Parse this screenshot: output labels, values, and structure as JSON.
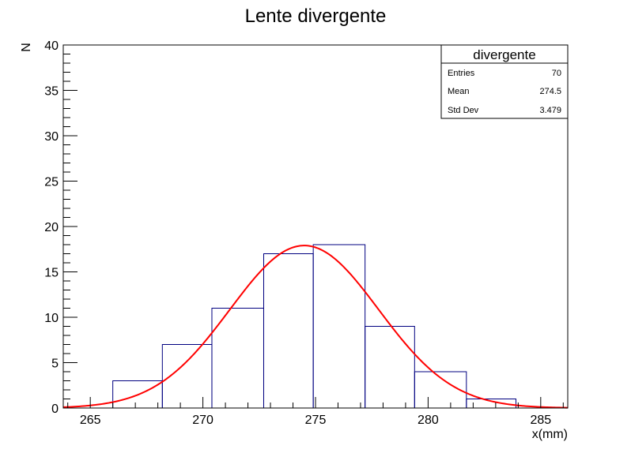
{
  "chart_data": {
    "type": "histogram",
    "title": "Lente divergente",
    "xlabel": "x(mm)",
    "ylabel": "N",
    "xlim": [
      263.8,
      286.2
    ],
    "ylim": [
      0,
      40
    ],
    "x_ticks": [
      265,
      270,
      275,
      280,
      285
    ],
    "y_ticks": [
      0,
      5,
      10,
      15,
      20,
      25,
      30,
      35,
      40
    ],
    "bins": [
      {
        "low": 266.0,
        "high": 268.2,
        "count": 3
      },
      {
        "low": 268.2,
        "high": 270.4,
        "count": 7
      },
      {
        "low": 270.4,
        "high": 272.7,
        "count": 11
      },
      {
        "low": 272.7,
        "high": 274.9,
        "count": 17
      },
      {
        "low": 274.9,
        "high": 277.2,
        "count": 18
      },
      {
        "low": 277.2,
        "high": 279.4,
        "count": 9
      },
      {
        "low": 279.4,
        "high": 281.7,
        "count": 4
      },
      {
        "low": 281.7,
        "high": 283.9,
        "count": 1
      }
    ],
    "fit": {
      "type": "gaussian",
      "amplitude": 17.9,
      "mean": 274.5,
      "sigma": 3.3
    },
    "histogram_color": "#000080",
    "fit_color": "#ff0000",
    "grid": false,
    "stats_box": {
      "name": "divergente",
      "position": "top-right",
      "rows": [
        {
          "label": "Entries",
          "value": "70"
        },
        {
          "label": "Mean",
          "value": "274.5"
        },
        {
          "label": "Std Dev",
          "value": "3.479"
        }
      ]
    }
  }
}
